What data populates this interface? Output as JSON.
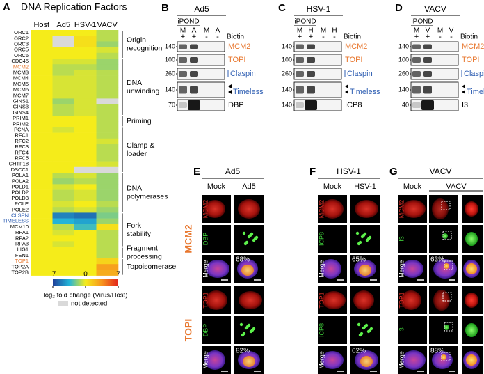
{
  "chart_data": {
    "type": "heatmap",
    "panel_label": "A",
    "title": "DNA Replication Factors",
    "columns": [
      "Host",
      "Ad5",
      "HSV-1",
      "VACV"
    ],
    "rows": [
      "ORC1",
      "ORC2",
      "ORC3",
      "ORC5",
      "ORC6",
      "CDC45",
      "MCM2",
      "MCM3",
      "MCM4",
      "MCM5",
      "MCM6",
      "MCM7",
      "GINS1",
      "GINS3",
      "GINS4",
      "PRIM1",
      "PRIM2",
      "PCNA",
      "RFC1",
      "RFC2",
      "RFC3",
      "RFC4",
      "RFC5",
      "CHTF18",
      "DSCC1",
      "POLA1",
      "POLA2",
      "POLD1",
      "POLD2",
      "POLD3",
      "POLE",
      "POLE2",
      "CLSPN",
      "TIMELESS",
      "MCM10",
      "RPA1",
      "RPA2",
      "RPA3",
      "LIG1",
      "FEN1",
      "TOP1",
      "TOP2A",
      "TOP2B"
    ],
    "label_colors": {
      "MCM2": "#e8772e",
      "CLSPN": "#2f5fb3",
      "TIMELESS": "#2f5fb3",
      "TOP1": "#e8772e"
    },
    "values": [
      [
        0,
        0,
        0,
        -1
      ],
      [
        0,
        null,
        0.5,
        -1
      ],
      [
        0,
        null,
        0.5,
        -1.5
      ],
      [
        0,
        0,
        0,
        -0.5
      ],
      [
        0,
        0,
        0,
        -1
      ],
      [
        0,
        -0.5,
        -0.5,
        -1.5
      ],
      [
        0,
        -1,
        -1,
        -1.5
      ],
      [
        0,
        -1,
        -0.5,
        -1
      ],
      [
        0,
        -0.5,
        -0.5,
        -1
      ],
      [
        0,
        -0.5,
        -0.5,
        -1
      ],
      [
        0,
        -0.5,
        -0.5,
        -1
      ],
      [
        0,
        -0.5,
        -0.5,
        -1
      ],
      [
        0,
        -1.5,
        -0.5,
        null
      ],
      [
        0,
        -1,
        -0.5,
        -1
      ],
      [
        0,
        -1,
        -0.5,
        -1
      ],
      [
        0,
        0,
        0,
        -1
      ],
      [
        0,
        0,
        0,
        -1
      ],
      [
        0,
        -0.5,
        0,
        -1
      ],
      [
        0,
        0,
        0,
        -1
      ],
      [
        0,
        0,
        0,
        -0.5
      ],
      [
        0,
        0,
        0,
        -1
      ],
      [
        0,
        0,
        0,
        -1
      ],
      [
        0,
        0,
        0,
        -1
      ],
      [
        0,
        0,
        0,
        -0.5
      ],
      [
        0,
        0,
        null,
        null
      ],
      [
        0,
        -1,
        -0.5,
        -1.5
      ],
      [
        0,
        -1.5,
        -1,
        -1.5
      ],
      [
        0,
        -0.5,
        0,
        -1.5
      ],
      [
        0,
        -1,
        -0.5,
        -1.5
      ],
      [
        0,
        -1,
        -0.5,
        -1.5
      ],
      [
        0,
        -0.5,
        0,
        -1
      ],
      [
        0,
        -1,
        -0.5,
        -1.5
      ],
      [
        0,
        -5,
        -5.5,
        -2
      ],
      [
        0,
        -3.5,
        -4,
        -1.5
      ],
      [
        0,
        -1,
        -3,
        0.5
      ],
      [
        0,
        -0.5,
        0,
        -1
      ],
      [
        0,
        0,
        0,
        -1
      ],
      [
        0,
        -0.5,
        0,
        -1
      ],
      [
        0,
        0,
        0,
        -1
      ],
      [
        0,
        0,
        0,
        -1
      ],
      [
        0,
        0,
        0,
        1
      ],
      [
        0,
        0,
        0,
        3
      ],
      [
        0,
        0,
        0,
        2.5
      ]
    ],
    "clim": [
      -7,
      7
    ],
    "cticks": [
      -7,
      0,
      7
    ],
    "colorbar_label": "log₂ fold change (Virus/Host)",
    "na_label": "not detected",
    "na_color": "#d9d9d9",
    "groups": [
      {
        "label": [
          "Origin",
          "recognition"
        ],
        "from": "ORC1",
        "to": "ORC6"
      },
      {
        "label": [
          "DNA",
          "unwinding"
        ],
        "from": "CDC45",
        "to": "GINS4"
      },
      {
        "label": [
          "Priming"
        ],
        "from": "PRIM1",
        "to": "PRIM2"
      },
      {
        "label": [
          "Clamp &",
          "loader"
        ],
        "from": "PCNA",
        "to": "DSCC1"
      },
      {
        "label": [
          "DNA",
          "polymerases"
        ],
        "from": "POLA1",
        "to": "POLE2"
      },
      {
        "label": [
          "Fork",
          "stability"
        ],
        "from": "CLSPN",
        "to": "RPA3"
      },
      {
        "label": [
          "Fragment",
          "processing"
        ],
        "from": "LIG1",
        "to": "FEN1"
      },
      {
        "label": [
          "Topoisomerase"
        ],
        "from": "TOP1",
        "to": "TOP2B"
      }
    ]
  },
  "blots": [
    {
      "label": "B",
      "virus": "Ad5",
      "method": "iPOND",
      "lanes": [
        "M",
        "A",
        "M",
        "A"
      ],
      "biotin": [
        "+",
        "+",
        "-",
        "-"
      ],
      "biotin_label": "Biotin",
      "rows": [
        {
          "marker": 140,
          "protein": "MCM2",
          "color": "#e8772e"
        },
        {
          "marker": 100,
          "protein": "TOPI",
          "color": "#e8772e"
        },
        {
          "marker": 260,
          "protein": "Claspin",
          "color": "#2f5fb3"
        },
        {
          "marker": 140,
          "protein": "Timeless",
          "color": "#2f5fb3"
        },
        {
          "marker": 70,
          "protein": "DBP",
          "color": "#000000"
        }
      ]
    },
    {
      "label": "C",
      "virus": "HSV-1",
      "method": "iPOND",
      "lanes": [
        "M",
        "H",
        "M",
        "H"
      ],
      "biotin": [
        "+",
        "+",
        "-",
        "-"
      ],
      "biotin_label": "Biotin",
      "rows": [
        {
          "marker": 140,
          "protein": "MCM2",
          "color": "#e8772e"
        },
        {
          "marker": 100,
          "protein": "TOPI",
          "color": "#e8772e"
        },
        {
          "marker": 260,
          "protein": "Claspin",
          "color": "#2f5fb3"
        },
        {
          "marker": 140,
          "protein": "Timeless",
          "color": "#2f5fb3"
        },
        {
          "marker": 140,
          "protein": "ICP8",
          "color": "#000000"
        }
      ]
    },
    {
      "label": "D",
      "virus": "VACV",
      "method": "iPOND",
      "lanes": [
        "M",
        "V",
        "M",
        "V"
      ],
      "biotin": [
        "+",
        "+",
        "-",
        "-"
      ],
      "biotin_label": "Biotin",
      "rows": [
        {
          "marker": 140,
          "protein": "MCM2",
          "color": "#e8772e"
        },
        {
          "marker": 100,
          "protein": "TOPI",
          "color": "#e8772e"
        },
        {
          "marker": 260,
          "protein": "Claspin",
          "color": "#2f5fb3"
        },
        {
          "marker": 140,
          "protein": "Timeless",
          "color": "#2f5fb3"
        },
        {
          "marker": 40,
          "protein": "I3",
          "color": "#000000"
        }
      ]
    }
  ],
  "imaging": {
    "row_labels": [
      "MCM2",
      "TOPI"
    ],
    "panels": [
      {
        "label": "E",
        "virus": "Ad5",
        "conditions": [
          "Mock",
          "Ad5"
        ],
        "sets": [
          {
            "channels": [
              "MCM2",
              "DBP",
              "Merge"
            ],
            "percent": "68%"
          },
          {
            "channels": [
              "TOP1",
              "DBP",
              "Merge"
            ],
            "percent": "82%"
          }
        ]
      },
      {
        "label": "F",
        "virus": "HSV-1",
        "conditions": [
          "Mock",
          "HSV-1"
        ],
        "sets": [
          {
            "channels": [
              "MCM2",
              "ICP8",
              "Merge"
            ],
            "percent": "65%"
          },
          {
            "channels": [
              "TOP1",
              "ICP8",
              "Merge"
            ],
            "percent": "62%"
          }
        ]
      },
      {
        "label": "G",
        "virus": "VACV",
        "conditions": [
          "Mock",
          "VACV"
        ],
        "sets": [
          {
            "channels": [
              "MCM2",
              "I3",
              "Merge"
            ],
            "percent": "63%"
          },
          {
            "channels": [
              "TOP1",
              "I3",
              "Merge"
            ],
            "percent": "88%"
          }
        ]
      }
    ]
  }
}
